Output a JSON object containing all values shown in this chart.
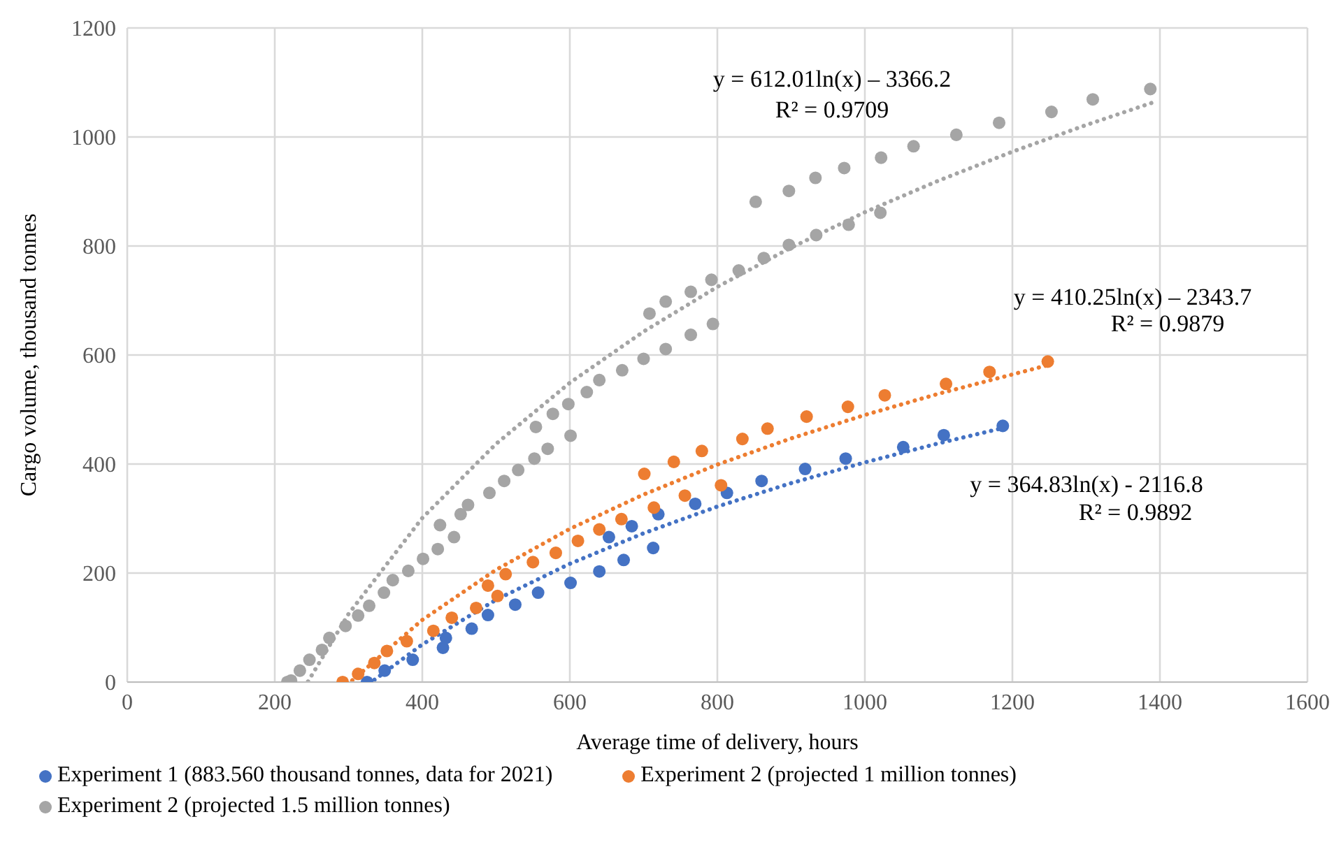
{
  "chart_data": {
    "type": "scatter",
    "xlabel": "Average time of delivery, hours",
    "ylabel": "Cargo volume, thousand tonnes",
    "xlim": [
      0,
      1600
    ],
    "xticks": [
      0,
      200,
      400,
      600,
      800,
      1000,
      1200,
      1400,
      1600
    ],
    "ylim": [
      0,
      1200
    ],
    "yticks": [
      0,
      200,
      400,
      600,
      800,
      1000,
      1200
    ],
    "grid": true,
    "legend": "bottom",
    "marker": "circle",
    "series": [
      {
        "name": "Experiment 1 (883.560 thousand tonnes, data for 2021)",
        "color": "#4472c4",
        "x": [
          325,
          349,
          387,
          428,
          432,
          467,
          489,
          526,
          557,
          601,
          640,
          653,
          673,
          684,
          713,
          720,
          770,
          813,
          860,
          919,
          974,
          1052,
          1107,
          1187
        ],
        "values": [
          0,
          21,
          41,
          63,
          81,
          98,
          123,
          142,
          164,
          182,
          203,
          266,
          224,
          286,
          246,
          308,
          327,
          347,
          369,
          391,
          410,
          431,
          453,
          470
        ]
      },
      {
        "name": "Experiment 2 (projected 1 million tonnes)",
        "color": "#ed7d31",
        "x": [
          292,
          313,
          335,
          352,
          379,
          415,
          440,
          473,
          489,
          502,
          513,
          550,
          581,
          611,
          640,
          670,
          701,
          714,
          741,
          756,
          779,
          805,
          834,
          868,
          921,
          977,
          1027,
          1110,
          1169,
          1248
        ],
        "values": [
          0,
          15,
          35,
          57,
          75,
          94,
          118,
          136,
          177,
          158,
          198,
          220,
          237,
          259,
          280,
          299,
          382,
          320,
          404,
          342,
          424,
          361,
          446,
          465,
          487,
          505,
          526,
          547,
          569,
          588
        ]
      },
      {
        "name": "Experiment 2 (projected 1.5 million tonnes)",
        "color": "#a5a5a5",
        "x": [
          217,
          222,
          234,
          247,
          264,
          274,
          296,
          313,
          328,
          348,
          360,
          381,
          401,
          421,
          424,
          443,
          452,
          462,
          491,
          511,
          530,
          552,
          554,
          570,
          577,
          598,
          601,
          623,
          640,
          671,
          700,
          708,
          730,
          730,
          764,
          764,
          792,
          794,
          829,
          852,
          863,
          897,
          897,
          933,
          934,
          972,
          978,
          1021,
          1022,
          1066,
          1124,
          1182,
          1253,
          1309,
          1387
        ],
        "values": [
          0,
          3,
          21,
          41,
          59,
          81,
          103,
          122,
          140,
          164,
          187,
          204,
          226,
          244,
          288,
          266,
          308,
          325,
          347,
          369,
          389,
          410,
          468,
          428,
          492,
          510,
          452,
          532,
          554,
          572,
          593,
          676,
          611,
          698,
          637,
          716,
          738,
          657,
          755,
          881,
          778,
          802,
          901,
          925,
          820,
          943,
          839,
          861,
          962,
          983,
          1004,
          1026,
          1046,
          1069,
          1088
        ]
      },
      {
        "type": "line",
        "color": "#4472c4",
        "line_style": "dotted",
        "marker": "none",
        "x": [
          335,
          400,
          500,
          600,
          700,
          800,
          900,
          1000,
          1100,
          1190
        ],
        "values": [
          4,
          69,
          151,
          217,
          273,
          322,
          365,
          403,
          438,
          467
        ]
      },
      {
        "type": "line",
        "color": "#ed7d31",
        "line_style": "dotted",
        "marker": "none",
        "x": [
          305,
          400,
          500,
          600,
          700,
          800,
          900,
          1000,
          1100,
          1250
        ],
        "values": [
          3,
          114,
          206,
          281,
          344,
          399,
          447,
          490,
          529,
          582
        ]
      },
      {
        "type": "line",
        "color": "#a5a5a5",
        "line_style": "dotted",
        "marker": "none",
        "x": [
          245,
          300,
          400,
          500,
          600,
          700,
          800,
          900,
          1000,
          1100,
          1200,
          1300,
          1390
        ],
        "values": [
          1,
          125,
          301,
          437,
          549,
          643,
          725,
          797,
          862,
          920,
          973,
          1022,
          1063
        ]
      }
    ],
    "annotations": [
      "y = 612.01ln(x) – 3366.2",
      "R² = 0.9709",
      "y = 410.25ln(x) – 2343.7",
      "R² = 0.9879",
      "y = 364.83ln(x) - 2116.8",
      "R² = 0.9892"
    ]
  }
}
